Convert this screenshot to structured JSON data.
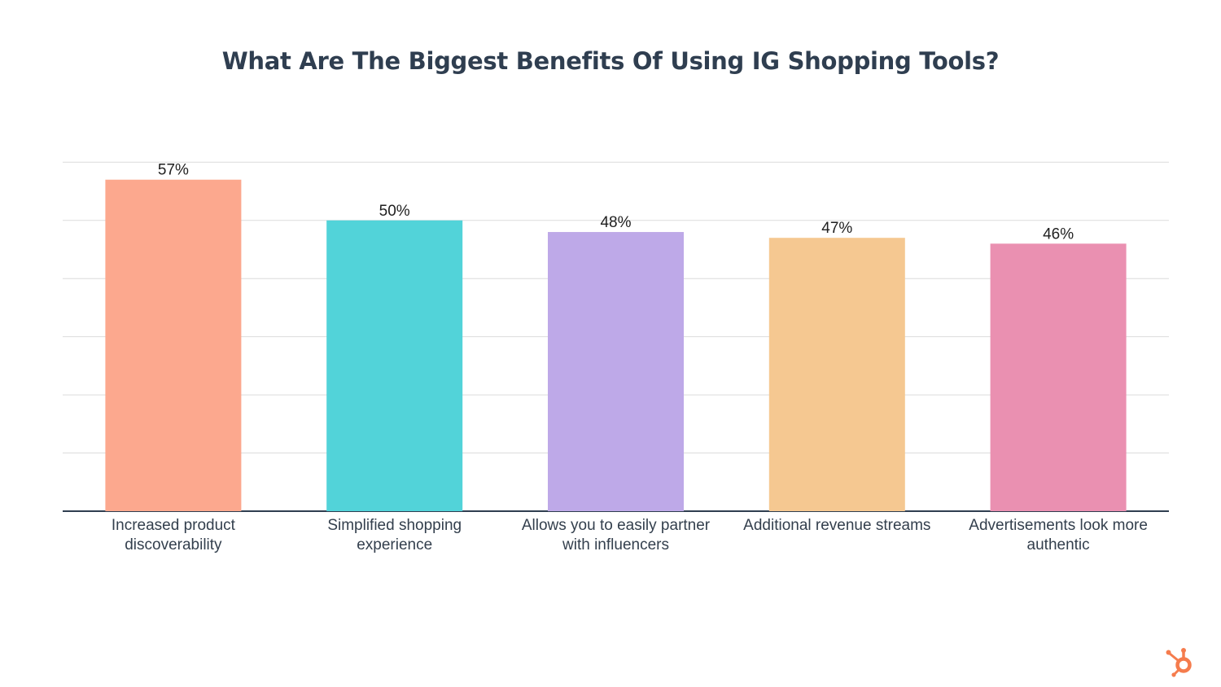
{
  "chart_data": {
    "type": "bar",
    "title": "What Are The Biggest Benefits Of Using IG Shopping Tools?",
    "categories": [
      [
        "Increased product",
        "discoverability"
      ],
      [
        "Simplified shopping",
        "experience"
      ],
      [
        "Allows you to easily partner",
        "with influencers"
      ],
      [
        "Additional revenue streams"
      ],
      [
        "Advertisements look more",
        "authentic"
      ]
    ],
    "values": [
      57,
      50,
      48,
      47,
      46
    ],
    "value_labels": [
      "57%",
      "50%",
      "48%",
      "47%",
      "46%"
    ],
    "colors": [
      "#fca88e",
      "#52d3d9",
      "#bea9e8",
      "#f5c891",
      "#ea90b1"
    ],
    "ylim": [
      0,
      60
    ],
    "grid": true,
    "xlabel": "",
    "ylabel": ""
  },
  "logo": {
    "icon": "hubspot-sprocket-icon",
    "color": "#f57c4d"
  }
}
